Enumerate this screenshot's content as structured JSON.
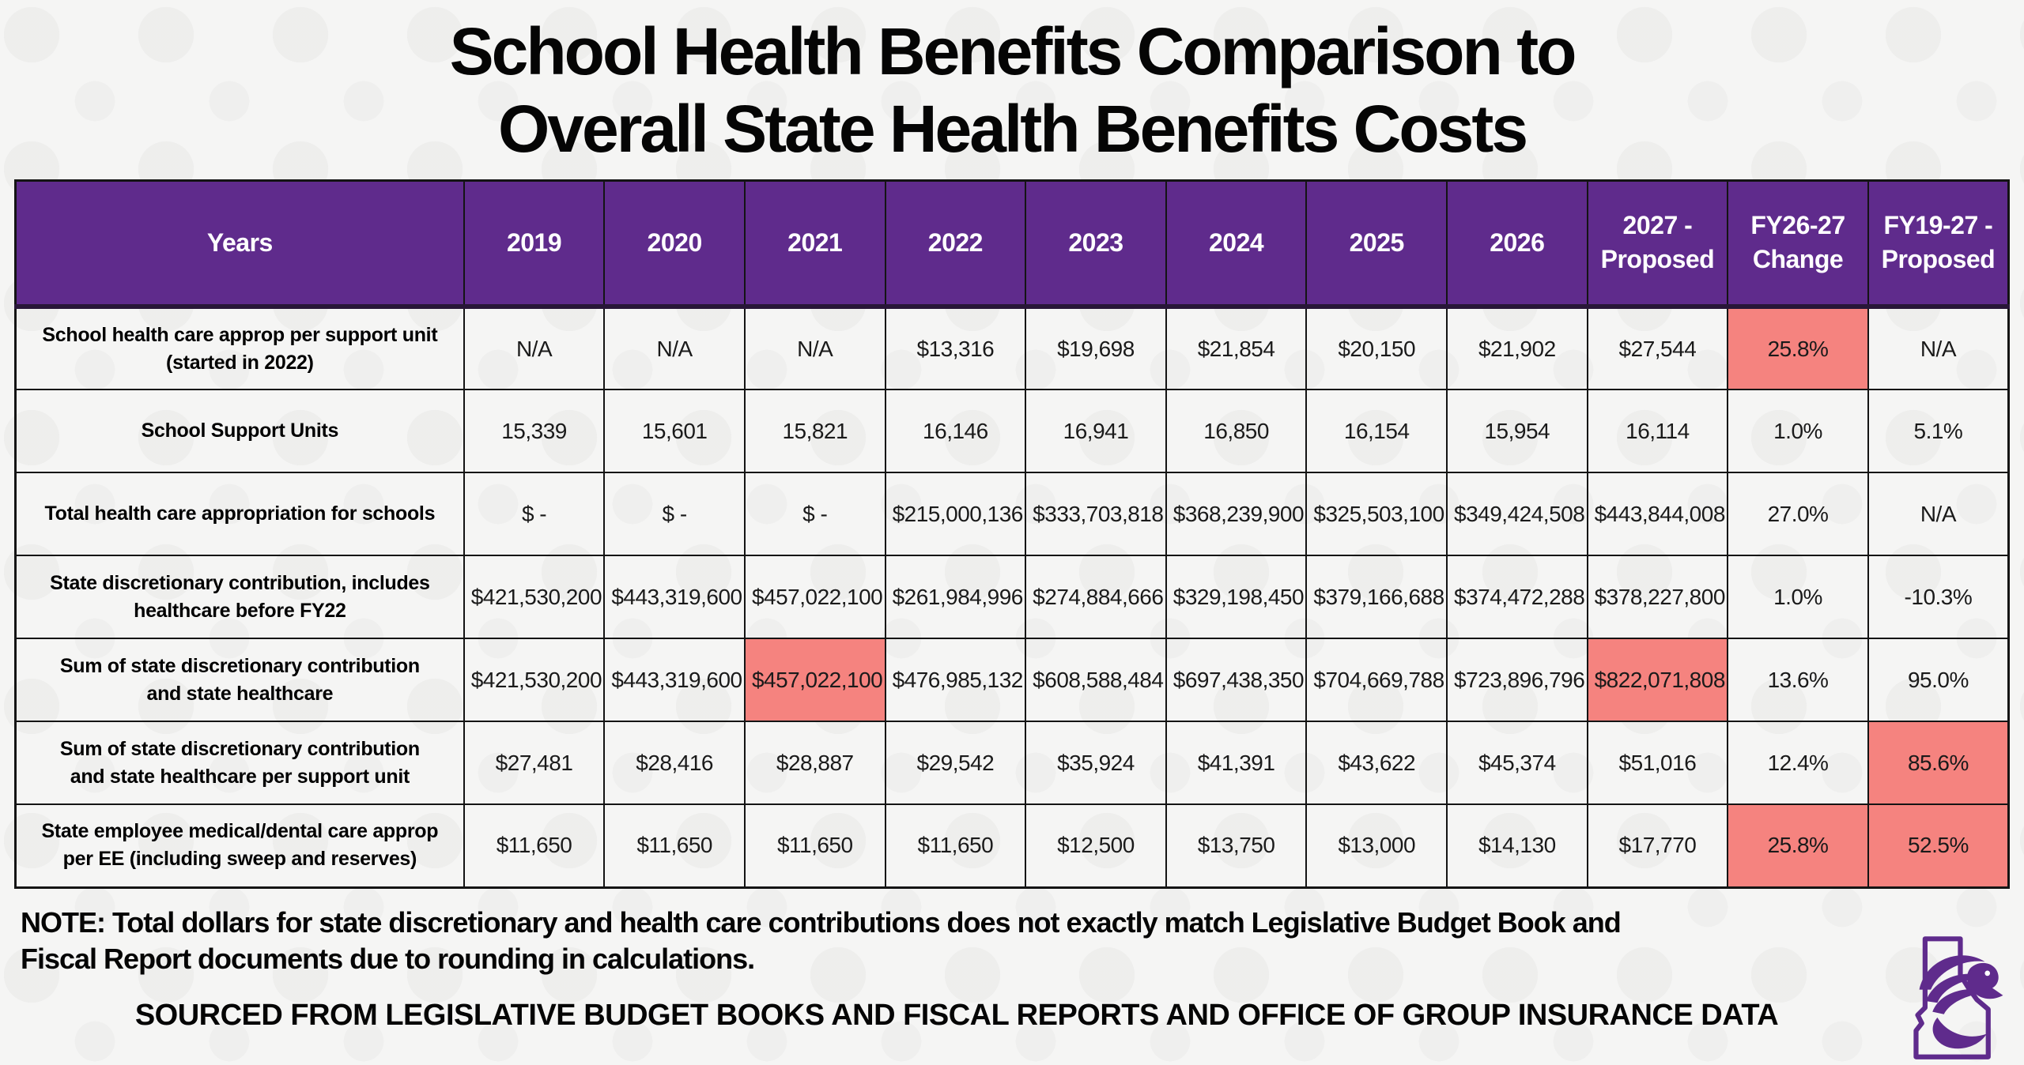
{
  "title": {
    "line1": "School Health Benefits Comparison to",
    "line2": "Overall State Health Benefits Costs"
  },
  "chart_data": {
    "type": "table",
    "title": "School Health Benefits Comparison to Overall State Health Benefits Costs",
    "columns": [
      "Years",
      "2019",
      "2020",
      "2021",
      "2022",
      "2023",
      "2024",
      "2025",
      "2026",
      "2027 - Proposed",
      "FY26-27 Change",
      "FY19-27 - Proposed"
    ],
    "rows": [
      {
        "label": "School health care approp per support unit (started in 2022)",
        "values": [
          "N/A",
          "N/A",
          "N/A",
          "$13,316",
          "$19,698",
          "$21,854",
          "$20,150",
          "$21,902",
          "$27,544",
          "25.8%",
          "N/A"
        ],
        "highlight_cols": [
          9
        ]
      },
      {
        "label": "School Support Units",
        "values": [
          "15,339",
          "15,601",
          "15,821",
          "16,146",
          "16,941",
          "16,850",
          "16,154",
          "15,954",
          "16,114",
          "1.0%",
          "5.1%"
        ],
        "highlight_cols": []
      },
      {
        "label": "Total health care appropriation for schools",
        "values": [
          "$ -",
          "$ -",
          "$ -",
          "$215,000,136",
          "$333,703,818",
          "$368,239,900",
          "$325,503,100",
          "$349,424,508",
          "$443,844,008",
          "27.0%",
          "N/A"
        ],
        "highlight_cols": []
      },
      {
        "label": "State discretionary contribution, includes healthcare before FY22",
        "values": [
          "$421,530,200",
          "$443,319,600",
          "$457,022,100",
          "$261,984,996",
          "$274,884,666",
          "$329,198,450",
          "$379,166,688",
          "$374,472,288",
          "$378,227,800",
          "1.0%",
          "-10.3%"
        ],
        "highlight_cols": []
      },
      {
        "label": "Sum of state discretionary contribution and state healthcare",
        "values": [
          "$421,530,200",
          "$443,319,600",
          "$457,022,100",
          "$476,985,132",
          "$608,588,484",
          "$697,438,350",
          "$704,669,788",
          "$723,896,796",
          "$822,071,808",
          "13.6%",
          "95.0%"
        ],
        "highlight_cols": [
          2,
          8
        ]
      },
      {
        "label": "Sum of state discretionary contribution and state healthcare per support unit",
        "values": [
          "$27,481",
          "$28,416",
          "$28,887",
          "$29,542",
          "$35,924",
          "$41,391",
          "$43,622",
          "$45,374",
          "$51,016",
          "12.4%",
          "85.6%"
        ],
        "highlight_cols": [
          10
        ]
      },
      {
        "label": "State employee medical/dental care approp per EE (including sweep and reserves)",
        "values": [
          "$11,650",
          "$11,650",
          "$11,650",
          "$11,650",
          "$12,500",
          "$13,750",
          "$13,000",
          "$14,130",
          "$17,770",
          "25.8%",
          "52.5%"
        ],
        "highlight_cols": [
          9,
          10
        ]
      }
    ]
  },
  "note": {
    "line1": "NOTE: Total dollars for state discretionary and health care contributions does not exactly match Legislative Budget Book and",
    "line2": "Fiscal Report documents due to rounding in calculations."
  },
  "source": "SOURCED FROM LEGISLATIVE BUDGET BOOKS AND FISCAL REPORTS AND OFFICE OF GROUP INSURANCE DATA",
  "logo_icon": "idaho-eagle-logo",
  "colors": {
    "header_bg": "#5f2b8c",
    "header_text": "#ffffff",
    "highlight": "#f5837f",
    "border": "#141414",
    "logo_purple": "#5f2b8c"
  }
}
